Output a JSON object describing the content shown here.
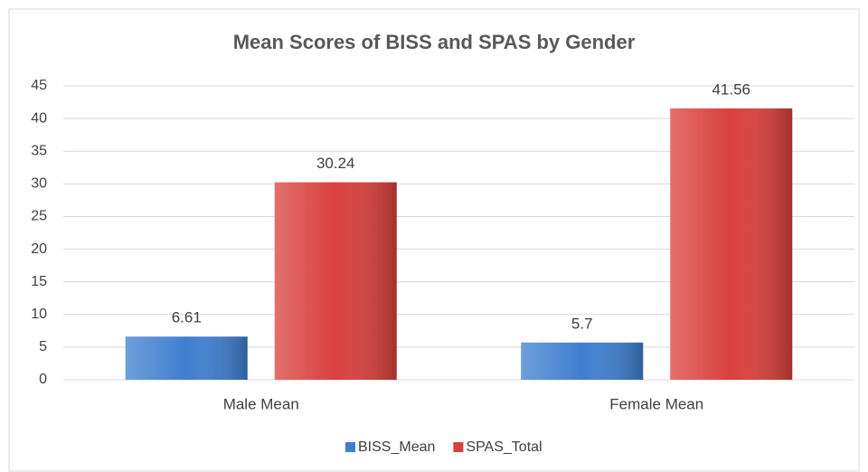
{
  "chart_data": {
    "type": "bar",
    "title": "Mean Scores of BISS and SPAS by Gender",
    "categories": [
      "Male Mean",
      "Female Mean"
    ],
    "series": [
      {
        "name": "BISS_Mean",
        "color": "#3f7fd0",
        "values": [
          6.61,
          5.7
        ]
      },
      {
        "name": "SPAS_Total",
        "color": "#d9403c",
        "values": [
          30.24,
          41.56
        ]
      }
    ],
    "ylim": [
      0,
      45
    ],
    "yticks": [
      0,
      5,
      10,
      15,
      20,
      25,
      30,
      35,
      40,
      45
    ],
    "grid": true,
    "legend": "bottom"
  }
}
